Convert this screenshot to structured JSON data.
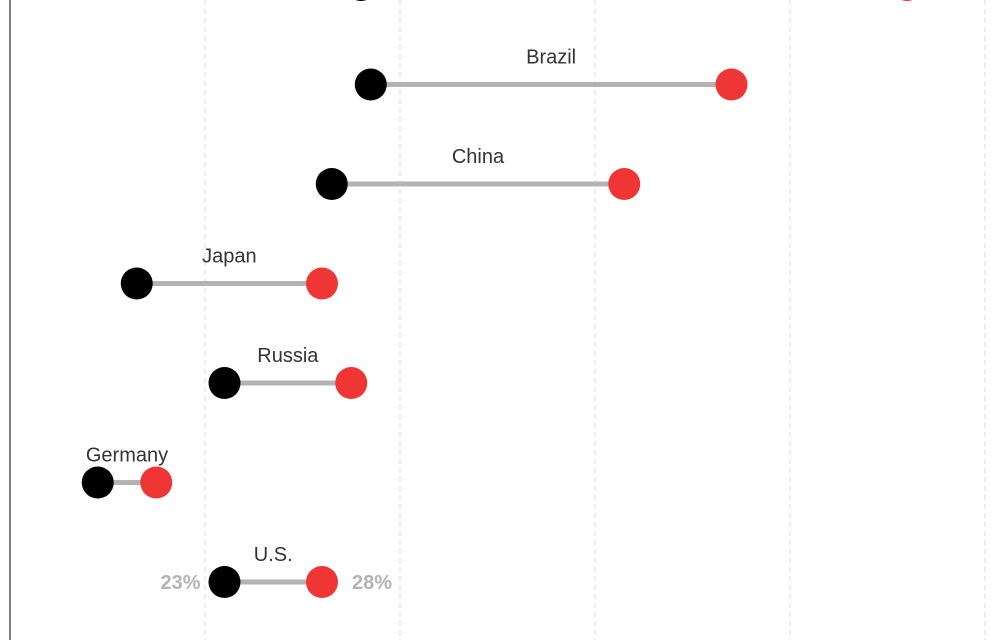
{
  "chart_data": {
    "type": "dumbbell",
    "x_unit": "%",
    "series": [
      {
        "name": "",
        "color": "#000000"
      },
      {
        "name": "",
        "color": "#f03535"
      }
    ],
    "grid": true,
    "rows": [
      {
        "label": "",
        "start": 30,
        "end": 58,
        "show_values": false
      },
      {
        "label": "Brazil",
        "start": 30.5,
        "end": 49,
        "show_values": false
      },
      {
        "label": "China",
        "start": 28.5,
        "end": 43.5,
        "show_values": false
      },
      {
        "label": "Japan",
        "start": 18.5,
        "end": 28,
        "show_values": false
      },
      {
        "label": "Russia",
        "start": 23,
        "end": 29.5,
        "show_values": false
      },
      {
        "label": "Germany",
        "start": 16.5,
        "end": 19.5,
        "show_values": false
      },
      {
        "label": "U.S.",
        "start": 23,
        "end": 28,
        "show_values": true
      }
    ]
  }
}
